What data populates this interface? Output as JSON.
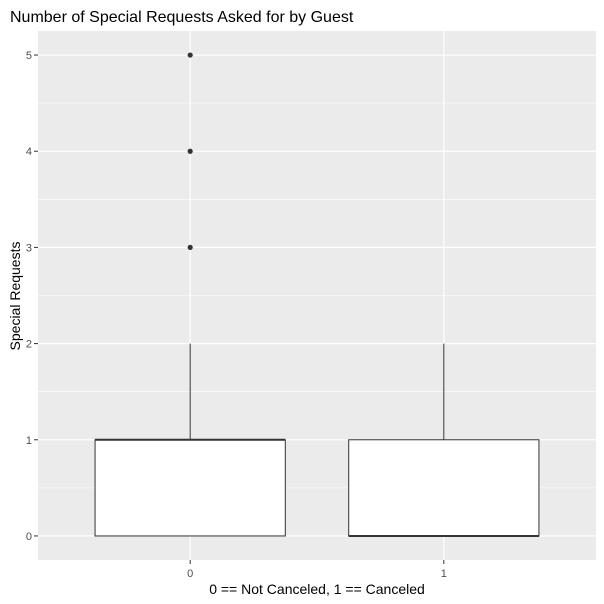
{
  "chart_data": {
    "type": "box",
    "title": "Number of Special Requests Asked for by Guest",
    "xlabel": "0 == Not Canceled, 1 == Canceled",
    "ylabel": "Special Requests",
    "categories": [
      "0",
      "1"
    ],
    "y_ticks": [
      "0",
      "1",
      "2",
      "3",
      "4",
      "5"
    ],
    "ylim": [
      -0.25,
      5.25
    ],
    "grid": true,
    "boxes": [
      {
        "category": "0",
        "whisker_low": 0,
        "q1": 0,
        "median": 1,
        "q3": 1,
        "whisker_high": 2,
        "outliers": [
          3,
          4,
          5
        ]
      },
      {
        "category": "1",
        "whisker_low": 0,
        "q1": 0,
        "median": 0,
        "q3": 1,
        "whisker_high": 2,
        "outliers": []
      }
    ],
    "colors": {
      "panel": "#ebebeb",
      "grid": "#ffffff",
      "box_fill": "#ffffff",
      "box_line": "#333333",
      "outlier": "#333333"
    }
  }
}
